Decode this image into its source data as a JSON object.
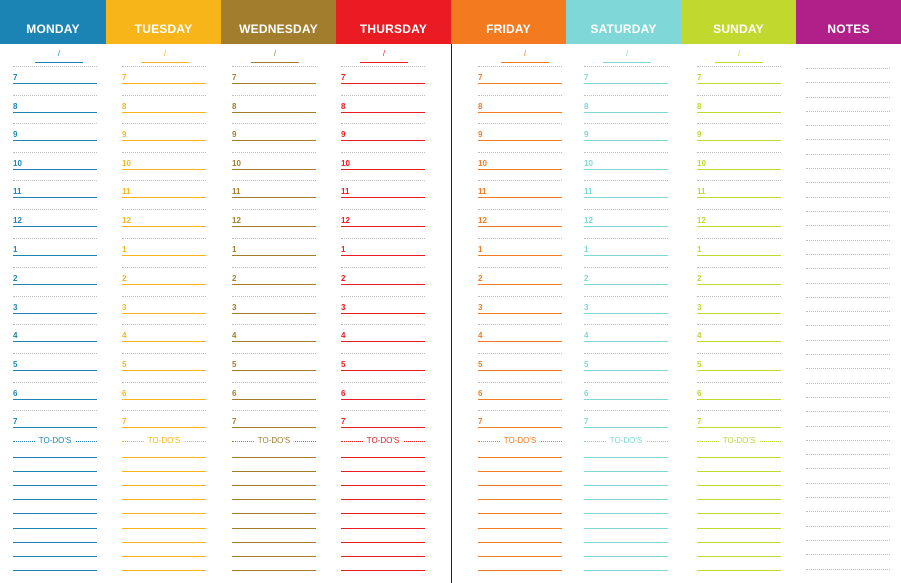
{
  "header": [
    {
      "label": "MONDAY",
      "color": "#1b84b4"
    },
    {
      "label": "TUESDAY",
      "color": "#f7b51a"
    },
    {
      "label": "WEDNESDAY",
      "color": "#a17d2d"
    },
    {
      "label": "THURSDAY",
      "color": "#ea1b23"
    },
    {
      "label": "FRIDAY",
      "color": "#f47a20"
    },
    {
      "label": "SATURDAY",
      "color": "#7fd7d7"
    },
    {
      "label": "SUNDAY",
      "color": "#c1d82f"
    },
    {
      "label": "NOTES",
      "color": "#b11f88"
    }
  ],
  "days": [
    {
      "key": "monday",
      "date_sep": "/",
      "hours": [
        "7",
        "8",
        "9",
        "10",
        "11",
        "12",
        "1",
        "2",
        "3",
        "4",
        "5",
        "6",
        "7"
      ],
      "todo_label": "TO-DO'S",
      "color": "#1b84b4"
    },
    {
      "key": "tuesday",
      "date_sep": "/",
      "hours": [
        "7",
        "8",
        "9",
        "10",
        "11",
        "12",
        "1",
        "2",
        "3",
        "4",
        "5",
        "6",
        "7"
      ],
      "todo_label": "TO-DO'S",
      "color": "#f7b51a"
    },
    {
      "key": "wednesday",
      "date_sep": "/",
      "hours": [
        "7",
        "8",
        "9",
        "10",
        "11",
        "12",
        "1",
        "2",
        "3",
        "4",
        "5",
        "6",
        "7"
      ],
      "todo_label": "TO-DO'S",
      "color": "#a17d2d"
    },
    {
      "key": "thursday",
      "date_sep": "/",
      "hours": [
        "7",
        "8",
        "9",
        "10",
        "11",
        "12",
        "1",
        "2",
        "3",
        "4",
        "5",
        "6",
        "7"
      ],
      "todo_label": "TO-DO'S",
      "color": "#ea1b23"
    },
    {
      "key": "friday",
      "date_sep": "/",
      "hours": [
        "7",
        "8",
        "9",
        "10",
        "11",
        "12",
        "1",
        "2",
        "3",
        "4",
        "5",
        "6",
        "7"
      ],
      "todo_label": "TO-DO'S",
      "color": "#f47a20"
    },
    {
      "key": "saturday",
      "date_sep": "/",
      "hours": [
        "7",
        "8",
        "9",
        "10",
        "11",
        "12",
        "1",
        "2",
        "3",
        "4",
        "5",
        "6",
        "7"
      ],
      "todo_label": "TO-DO'S",
      "color": "#7fd7d7"
    },
    {
      "key": "sunday",
      "date_sep": "/",
      "hours": [
        "7",
        "8",
        "9",
        "10",
        "11",
        "12",
        "1",
        "2",
        "3",
        "4",
        "5",
        "6",
        "7"
      ],
      "todo_label": "TO-DO'S",
      "color": "#c1d82f"
    }
  ]
}
